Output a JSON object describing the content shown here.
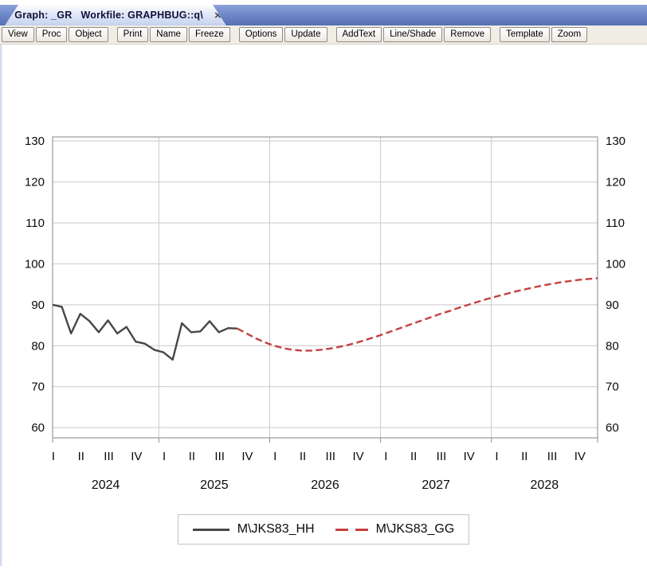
{
  "window": {
    "tab_title": "Graph: _GR   Workfile: GRAPHBUG::q\\",
    "close_glyph": "×"
  },
  "toolbar": {
    "groups": [
      [
        "View",
        "Proc",
        "Object"
      ],
      [
        "Print",
        "Name",
        "Freeze"
      ],
      [
        "Options",
        "Update"
      ],
      [
        "AddText",
        "Line/Shade",
        "Remove"
      ],
      [
        "Template",
        "Zoom"
      ]
    ]
  },
  "chart_data": {
    "type": "line",
    "frequency": "monthly",
    "x_start": "2024M01",
    "x_end": "2028M12",
    "years": [
      "2024",
      "2025",
      "2026",
      "2027",
      "2028"
    ],
    "quarter_labels": [
      "I",
      "II",
      "III",
      "IV"
    ],
    "yticks": [
      60,
      70,
      80,
      90,
      100,
      110,
      120,
      130
    ],
    "ylim": [
      57.5,
      131
    ],
    "grid": "on",
    "dual_axis_labels": true,
    "series": [
      {
        "name": "M\\JKS83_HH",
        "style": "solid",
        "color": "#474747",
        "start_index": 0,
        "values": [
          90.0,
          89.5,
          83.0,
          87.8,
          86.0,
          83.3,
          86.2,
          83.0,
          84.6,
          81.0,
          80.5,
          79.0,
          78.4,
          76.6,
          85.5,
          83.3,
          83.5,
          86.0,
          83.3,
          84.3,
          84.2
        ]
      },
      {
        "name": "M\\JKS83_GG",
        "style": "dashed",
        "color": "#c54040",
        "start_index": 20,
        "values": [
          84.2,
          83.0,
          81.8,
          80.8,
          80.0,
          79.4,
          79.0,
          78.8,
          78.8,
          79.0,
          79.3,
          79.7,
          80.2,
          80.8,
          81.5,
          82.2,
          83.0,
          83.8,
          84.6,
          85.4,
          86.2,
          87.0,
          87.8,
          88.5,
          89.3,
          90.0,
          90.7,
          91.4,
          92.0,
          92.6,
          93.2,
          93.7,
          94.2,
          94.7,
          95.1,
          95.5,
          95.8,
          96.1,
          96.3,
          96.5
        ]
      }
    ],
    "legend": {
      "position": "bottom-center"
    }
  }
}
